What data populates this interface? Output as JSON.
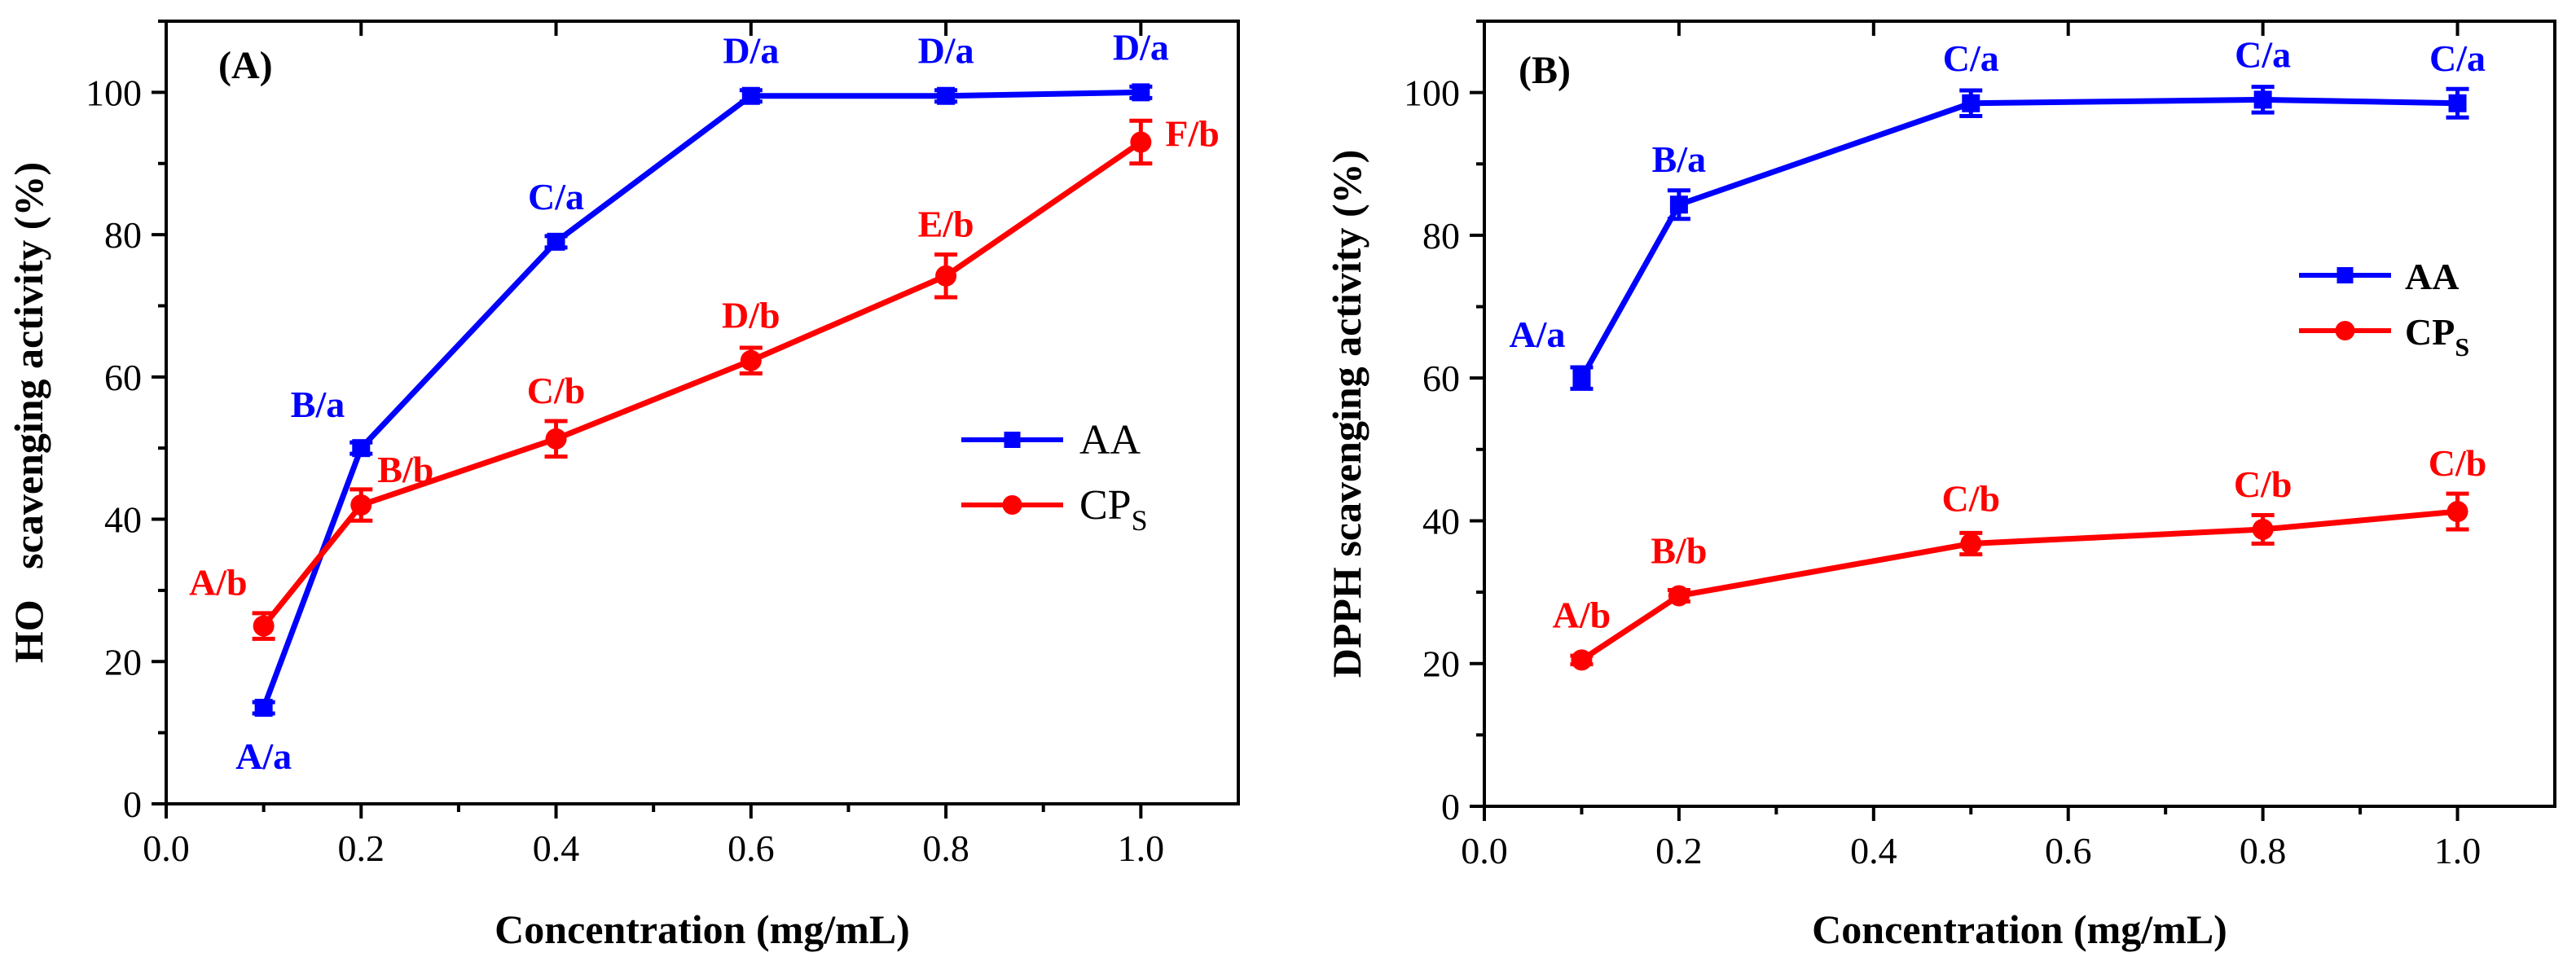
{
  "chart_data": [
    {
      "type": "line",
      "panel_label": "(A)",
      "xlabel": "Concentration (mg/mL)",
      "ylabel": "HO   scavenging activity (%)",
      "xlim": [
        0.0,
        1.1
      ],
      "ylim": [
        0,
        110
      ],
      "xticks": [
        0.0,
        0.2,
        0.4,
        0.6,
        0.8,
        1.0
      ],
      "xtick_labels": [
        "0.0",
        "0.2",
        "0.4",
        "0.6",
        "0.8",
        "1.0"
      ],
      "yticks": [
        0,
        20,
        40,
        60,
        80,
        100
      ],
      "ytick_labels": [
        "0",
        "20",
        "40",
        "60",
        "80",
        "100"
      ],
      "legend": {
        "position": "right-middle",
        "bold": false
      },
      "series": [
        {
          "name": "AA",
          "name_sub": "",
          "color": "#0000ff",
          "marker": "square",
          "x": [
            0.1,
            0.2,
            0.4,
            0.6,
            0.8,
            1.0
          ],
          "values": [
            13.5,
            50,
            79,
            99.5,
            99.5,
            100
          ],
          "errors": [
            0.8,
            0.8,
            0.8,
            0.8,
            0.8,
            0.8
          ],
          "labels": [
            "A/a",
            "B/a",
            "C/a",
            "D/a",
            "D/a",
            "D/a"
          ],
          "label_pos": [
            "below",
            "above-left",
            "above",
            "above",
            "above",
            "above"
          ]
        },
        {
          "name": "CP",
          "name_sub": "S",
          "color": "#ff0000",
          "marker": "circle",
          "x": [
            0.1,
            0.2,
            0.4,
            0.6,
            0.8,
            1.0
          ],
          "values": [
            25,
            42,
            51.3,
            62.3,
            74.2,
            93
          ],
          "errors": [
            1.8,
            2.2,
            2.5,
            1.8,
            3.0,
            3.0
          ],
          "labels": [
            "A/b",
            "B/b",
            "C/b",
            "D/b",
            "E/b",
            "F/b"
          ],
          "label_pos": [
            "above-left",
            "above-right",
            "above",
            "above",
            "above",
            "right"
          ]
        }
      ]
    },
    {
      "type": "line",
      "panel_label": "(B)",
      "xlabel": "Concentration (mg/mL)",
      "ylabel": "DPPH scavenging activity (%)",
      "xlim": [
        0.0,
        1.1
      ],
      "ylim": [
        0,
        110
      ],
      "xticks": [
        0.0,
        0.2,
        0.4,
        0.6,
        0.8,
        1.0
      ],
      "xtick_labels": [
        "0.0",
        "0.2",
        "0.4",
        "0.6",
        "0.8",
        "1.0"
      ],
      "yticks": [
        0,
        20,
        40,
        60,
        80,
        100
      ],
      "ytick_labels": [
        "0",
        "20",
        "40",
        "60",
        "80",
        "100"
      ],
      "legend": {
        "position": "right-upper",
        "bold": true
      },
      "series": [
        {
          "name": "AA",
          "name_sub": "",
          "color": "#0000ff",
          "marker": "square",
          "x": [
            0.1,
            0.2,
            0.5,
            0.8,
            1.0
          ],
          "values": [
            60,
            84.3,
            98.5,
            99,
            98.5
          ],
          "errors": [
            1.5,
            2.0,
            1.8,
            1.8,
            2.0
          ],
          "labels": [
            "A/a",
            "B/a",
            "C/a",
            "C/a",
            "C/a"
          ],
          "label_pos": [
            "above-left",
            "above",
            "above",
            "above",
            "above"
          ]
        },
        {
          "name": "CP",
          "name_sub": "S",
          "color": "#ff0000",
          "marker": "circle",
          "x": [
            0.1,
            0.2,
            0.5,
            0.8,
            1.0
          ],
          "values": [
            20.5,
            29.5,
            36.8,
            38.8,
            41.3
          ],
          "errors": [
            0.6,
            0.8,
            1.5,
            2.0,
            2.5
          ],
          "labels": [
            "A/b",
            "B/b",
            "C/b",
            "C/b",
            "C/b"
          ],
          "label_pos": [
            "above",
            "above",
            "above",
            "above",
            "above"
          ]
        }
      ]
    }
  ]
}
